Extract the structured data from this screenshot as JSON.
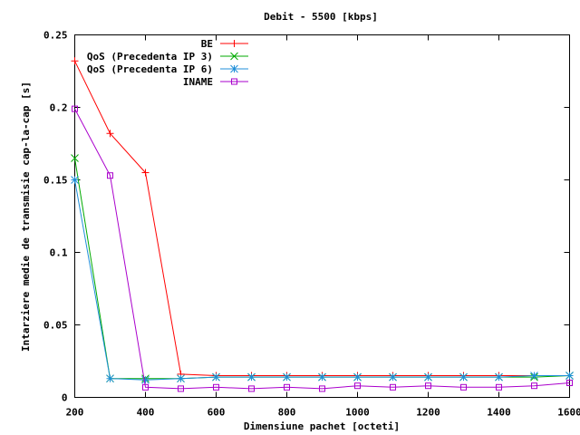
{
  "chart_data": {
    "type": "line",
    "title": "Debit - 5500 [kbps]",
    "xlabel": "Dimensiune pachet [octeti]",
    "ylabel": "Intarziere medie de transmisie cap-la-cap [s]",
    "xlim": [
      200,
      1600
    ],
    "ylim": [
      0,
      0.25
    ],
    "x_ticks": [
      "200",
      "400",
      "600",
      "800",
      "1000",
      "1200",
      "1400",
      "1600"
    ],
    "y_ticks": [
      "0",
      "0.05",
      "0.1",
      "0.15",
      "0.2",
      "0.25"
    ],
    "grid": false,
    "legend_position": "top-right",
    "x": [
      200,
      300,
      400,
      500,
      600,
      700,
      800,
      900,
      1000,
      1100,
      1200,
      1300,
      1400,
      1500,
      1600
    ],
    "series": [
      {
        "name": "BE",
        "color": "#ff0000",
        "marker": "plus",
        "values": [
          0.232,
          0.182,
          0.155,
          0.016,
          0.015,
          0.015,
          0.015,
          0.015,
          0.015,
          0.015,
          0.015,
          0.015,
          0.015,
          0.015,
          0.015
        ]
      },
      {
        "name": "QoS (Precedenta IP 3)",
        "color": "#00aa00",
        "marker": "cross",
        "values": [
          0.165,
          0.013,
          0.013,
          0.013,
          0.014,
          0.014,
          0.014,
          0.014,
          0.014,
          0.014,
          0.014,
          0.014,
          0.014,
          0.014,
          0.015
        ]
      },
      {
        "name": "QoS (Precedenta IP 6)",
        "color": "#1f8fd8",
        "marker": "star",
        "values": [
          0.15,
          0.013,
          0.012,
          0.013,
          0.014,
          0.014,
          0.014,
          0.014,
          0.014,
          0.014,
          0.014,
          0.014,
          0.014,
          0.015,
          0.015
        ]
      },
      {
        "name": "INAME",
        "color": "#aa00cc",
        "marker": "square",
        "values": [
          0.199,
          0.153,
          0.007,
          0.006,
          0.007,
          0.006,
          0.007,
          0.006,
          0.008,
          0.007,
          0.008,
          0.007,
          0.007,
          0.008,
          0.01
        ]
      }
    ]
  }
}
